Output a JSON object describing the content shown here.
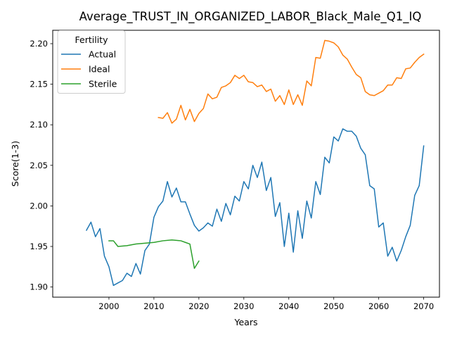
{
  "chart_data": {
    "type": "line",
    "title": "Average_TRUST_IN_ORGANIZED_LABOR_Black_Male_Q1_IQ",
    "xlabel": "Years",
    "ylabel": "Score(1-3)",
    "xlim": [
      1987.5,
      2073.5
    ],
    "ylim": [
      1.8875,
      2.2165
    ],
    "xticks": [
      2000,
      2010,
      2020,
      2030,
      2040,
      2050,
      2060,
      2070
    ],
    "yticks": [
      1.9,
      1.95,
      2.0,
      2.05,
      2.1,
      2.15,
      2.2
    ],
    "grid": false,
    "legend": {
      "title": "Fertility",
      "position": "upper-left"
    },
    "series": [
      {
        "name": "Actual",
        "color": "#1f77b4",
        "points": [
          [
            1995,
            1.97
          ],
          [
            1996,
            1.98
          ],
          [
            1997,
            1.962
          ],
          [
            1998,
            1.972
          ],
          [
            1999,
            1.938
          ],
          [
            2000,
            1.925
          ],
          [
            2001,
            1.902
          ],
          [
            2002,
            1.905
          ],
          [
            2003,
            1.908
          ],
          [
            2004,
            1.917
          ],
          [
            2005,
            1.913
          ],
          [
            2006,
            1.929
          ],
          [
            2007,
            1.916
          ],
          [
            2008,
            1.945
          ],
          [
            2009,
            1.953
          ],
          [
            2010,
            1.986
          ],
          [
            2011,
            1.999
          ],
          [
            2012,
            2.006
          ],
          [
            2013,
            2.03
          ],
          [
            2014,
            2.011
          ],
          [
            2015,
            2.022
          ],
          [
            2016,
            2.005
          ],
          [
            2017,
            2.005
          ],
          [
            2018,
            1.99
          ],
          [
            2019,
            1.976
          ],
          [
            2020,
            1.969
          ],
          [
            2021,
            1.973
          ],
          [
            2022,
            1.979
          ],
          [
            2023,
            1.975
          ],
          [
            2024,
            1.996
          ],
          [
            2025,
            1.981
          ],
          [
            2026,
            2.003
          ],
          [
            2027,
            1.989
          ],
          [
            2028,
            2.012
          ],
          [
            2029,
            2.006
          ],
          [
            2030,
            2.03
          ],
          [
            2031,
            2.021
          ],
          [
            2032,
            2.05
          ],
          [
            2033,
            2.035
          ],
          [
            2034,
            2.054
          ],
          [
            2035,
            2.019
          ],
          [
            2036,
            2.035
          ],
          [
            2037,
            1.987
          ],
          [
            2038,
            2.004
          ],
          [
            2039,
            1.95
          ],
          [
            2040,
            1.991
          ],
          [
            2041,
            1.943
          ],
          [
            2042,
            1.994
          ],
          [
            2043,
            1.96
          ],
          [
            2044,
            2.006
          ],
          [
            2045,
            1.985
          ],
          [
            2046,
            2.03
          ],
          [
            2047,
            2.014
          ],
          [
            2048,
            2.06
          ],
          [
            2049,
            2.053
          ],
          [
            2050,
            2.085
          ],
          [
            2051,
            2.08
          ],
          [
            2052,
            2.095
          ],
          [
            2053,
            2.092
          ],
          [
            2054,
            2.092
          ],
          [
            2055,
            2.086
          ],
          [
            2056,
            2.071
          ],
          [
            2057,
            2.063
          ],
          [
            2058,
            2.025
          ],
          [
            2059,
            2.021
          ],
          [
            2060,
            1.974
          ],
          [
            2061,
            1.979
          ],
          [
            2062,
            1.938
          ],
          [
            2063,
            1.949
          ],
          [
            2064,
            1.932
          ],
          [
            2065,
            1.945
          ],
          [
            2066,
            1.962
          ],
          [
            2067,
            1.976
          ],
          [
            2068,
            2.013
          ],
          [
            2069,
            2.025
          ],
          [
            2070,
            2.074
          ]
        ]
      },
      {
        "name": "Ideal",
        "color": "#ff7f0e",
        "points": [
          [
            2011,
            2.109
          ],
          [
            2012,
            2.108
          ],
          [
            2013,
            2.115
          ],
          [
            2014,
            2.102
          ],
          [
            2015,
            2.107
          ],
          [
            2016,
            2.124
          ],
          [
            2017,
            2.106
          ],
          [
            2018,
            2.119
          ],
          [
            2019,
            2.104
          ],
          [
            2020,
            2.114
          ],
          [
            2021,
            2.12
          ],
          [
            2022,
            2.138
          ],
          [
            2023,
            2.132
          ],
          [
            2024,
            2.134
          ],
          [
            2025,
            2.146
          ],
          [
            2026,
            2.148
          ],
          [
            2027,
            2.152
          ],
          [
            2028,
            2.161
          ],
          [
            2029,
            2.157
          ],
          [
            2030,
            2.161
          ],
          [
            2031,
            2.153
          ],
          [
            2032,
            2.152
          ],
          [
            2033,
            2.147
          ],
          [
            2034,
            2.149
          ],
          [
            2035,
            2.141
          ],
          [
            2036,
            2.144
          ],
          [
            2037,
            2.129
          ],
          [
            2038,
            2.136
          ],
          [
            2039,
            2.125
          ],
          [
            2040,
            2.143
          ],
          [
            2041,
            2.125
          ],
          [
            2042,
            2.137
          ],
          [
            2043,
            2.124
          ],
          [
            2044,
            2.154
          ],
          [
            2045,
            2.148
          ],
          [
            2046,
            2.183
          ],
          [
            2047,
            2.182
          ],
          [
            2048,
            2.204
          ],
          [
            2049,
            2.203
          ],
          [
            2050,
            2.201
          ],
          [
            2051,
            2.196
          ],
          [
            2052,
            2.186
          ],
          [
            2053,
            2.181
          ],
          [
            2054,
            2.171
          ],
          [
            2055,
            2.162
          ],
          [
            2056,
            2.158
          ],
          [
            2057,
            2.141
          ],
          [
            2058,
            2.137
          ],
          [
            2059,
            2.136
          ],
          [
            2060,
            2.139
          ],
          [
            2061,
            2.142
          ],
          [
            2062,
            2.149
          ],
          [
            2063,
            2.149
          ],
          [
            2064,
            2.158
          ],
          [
            2065,
            2.157
          ],
          [
            2066,
            2.169
          ],
          [
            2067,
            2.17
          ],
          [
            2068,
            2.177
          ],
          [
            2069,
            2.183
          ],
          [
            2070,
            2.187
          ]
        ]
      },
      {
        "name": "Sterile",
        "color": "#2ca02c",
        "points": [
          [
            2000,
            1.957
          ],
          [
            2001,
            1.957
          ],
          [
            2002,
            1.95
          ],
          [
            2004,
            1.951
          ],
          [
            2006,
            1.953
          ],
          [
            2008,
            1.954
          ],
          [
            2010,
            1.955
          ],
          [
            2012,
            1.957
          ],
          [
            2014,
            1.958
          ],
          [
            2016,
            1.957
          ],
          [
            2017,
            1.955
          ],
          [
            2018,
            1.953
          ],
          [
            2019,
            1.923
          ],
          [
            2020,
            1.932
          ]
        ]
      }
    ]
  }
}
